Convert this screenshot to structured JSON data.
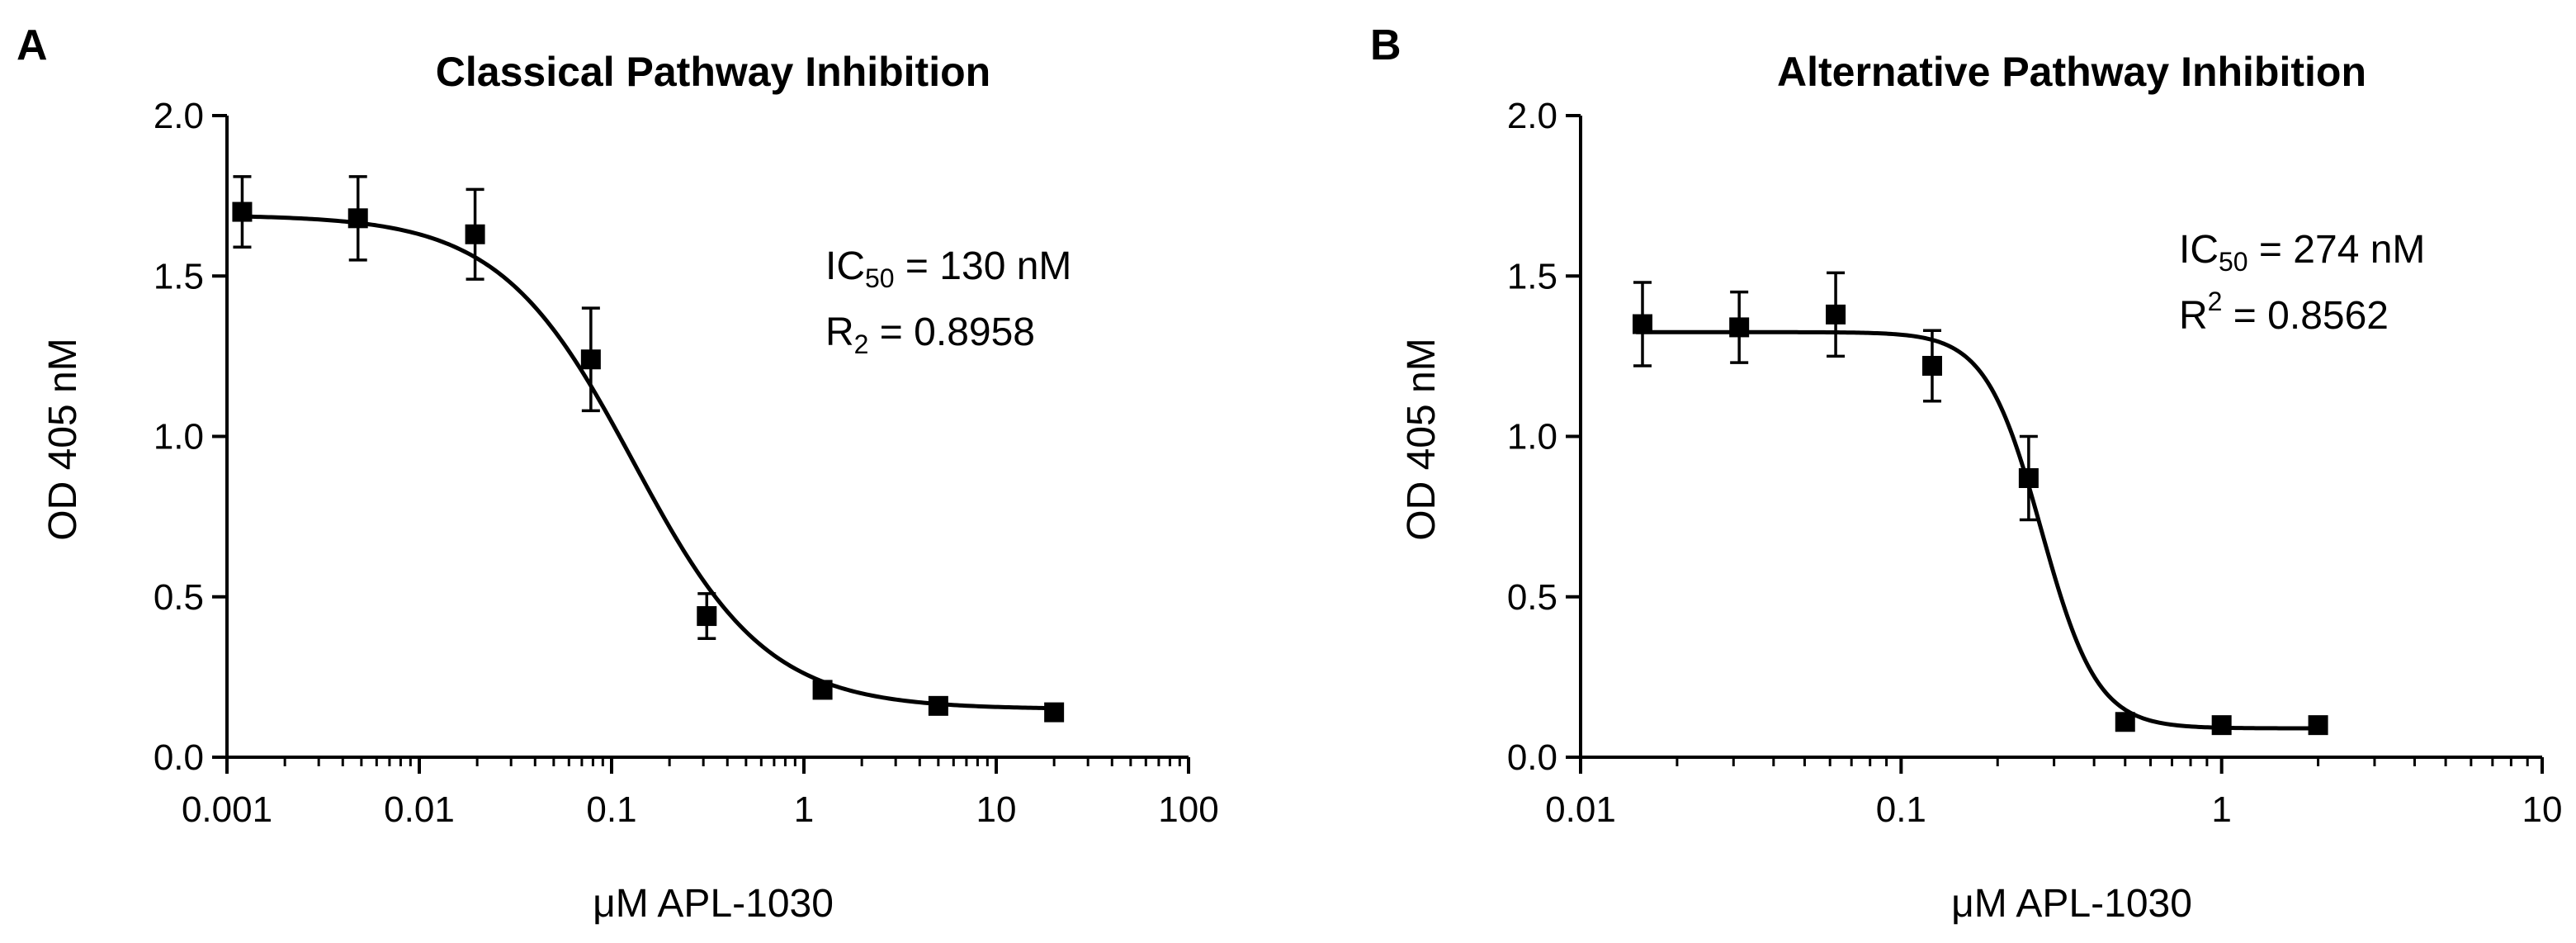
{
  "chart_data": [
    {
      "panel": "A",
      "type": "scatter",
      "title": "Classical Pathway Inhibition",
      "xlabel": "μM APL-1030",
      "ylabel": "OD 405 nM",
      "xscale": "log",
      "xlim": [
        0.001,
        100
      ],
      "ylim": [
        0,
        2.0
      ],
      "xticks": [
        0.001,
        0.01,
        0.1,
        1,
        10,
        100
      ],
      "xtick_labels": [
        "0.001",
        "0.01",
        "0.1",
        "1",
        "10",
        "100"
      ],
      "yticks": [
        0,
        0.5,
        1.0,
        1.5,
        2.0
      ],
      "ytick_labels": [
        "0.0",
        "0.5",
        "1.0",
        "1.5",
        "2.0"
      ],
      "x": [
        0.0012,
        0.0048,
        0.0195,
        0.078,
        0.3125,
        1.25,
        5,
        20
      ],
      "y": [
        1.7,
        1.68,
        1.63,
        1.24,
        0.44,
        0.21,
        0.16,
        0.14
      ],
      "yerr": [
        0.11,
        0.13,
        0.14,
        0.16,
        0.07,
        0.0,
        0.0,
        0.0
      ],
      "fit": {
        "top": 1.69,
        "bottom": 0.15,
        "ic50": 0.13,
        "hill": 1.25
      },
      "annotations": {
        "ic50_prefix": "IC",
        "ic50_sub": "50",
        "ic50_value": " = 130 nM",
        "r2_prefix": "R",
        "r2_sub": "2",
        "r2_value": " = 0.8958"
      }
    },
    {
      "panel": "B",
      "type": "scatter",
      "title": "Alternative Pathway Inhibition",
      "xlabel": "μM APL-1030",
      "ylabel": "OD 405 nM",
      "xscale": "log",
      "xlim": [
        0.01,
        10
      ],
      "ylim": [
        0,
        2.0
      ],
      "xticks": [
        0.01,
        0.1,
        1,
        10
      ],
      "xtick_labels": [
        "0.01",
        "0.1",
        "1",
        "10"
      ],
      "yticks": [
        0,
        0.5,
        1.0,
        1.5,
        2.0
      ],
      "ytick_labels": [
        "0.0",
        "0.5",
        "1.0",
        "1.5",
        "2.0"
      ],
      "x": [
        0.0156,
        0.03125,
        0.0625,
        0.125,
        0.25,
        0.5,
        1,
        2
      ],
      "y": [
        1.35,
        1.34,
        1.38,
        1.22,
        0.87,
        0.11,
        0.1,
        0.1
      ],
      "yerr": [
        0.13,
        0.11,
        0.13,
        0.11,
        0.13,
        0.0,
        0.0,
        0.0
      ],
      "fit": {
        "top": 1.325,
        "bottom": 0.09,
        "ic50": 0.274,
        "hill": 5.0
      },
      "annotations": {
        "ic50_prefix": "IC",
        "ic50_sub": "50",
        "ic50_value": " = 274 nM",
        "r2_prefix": "R",
        "r2_sup": "2",
        "r2_value": " = 0.8562"
      }
    }
  ]
}
